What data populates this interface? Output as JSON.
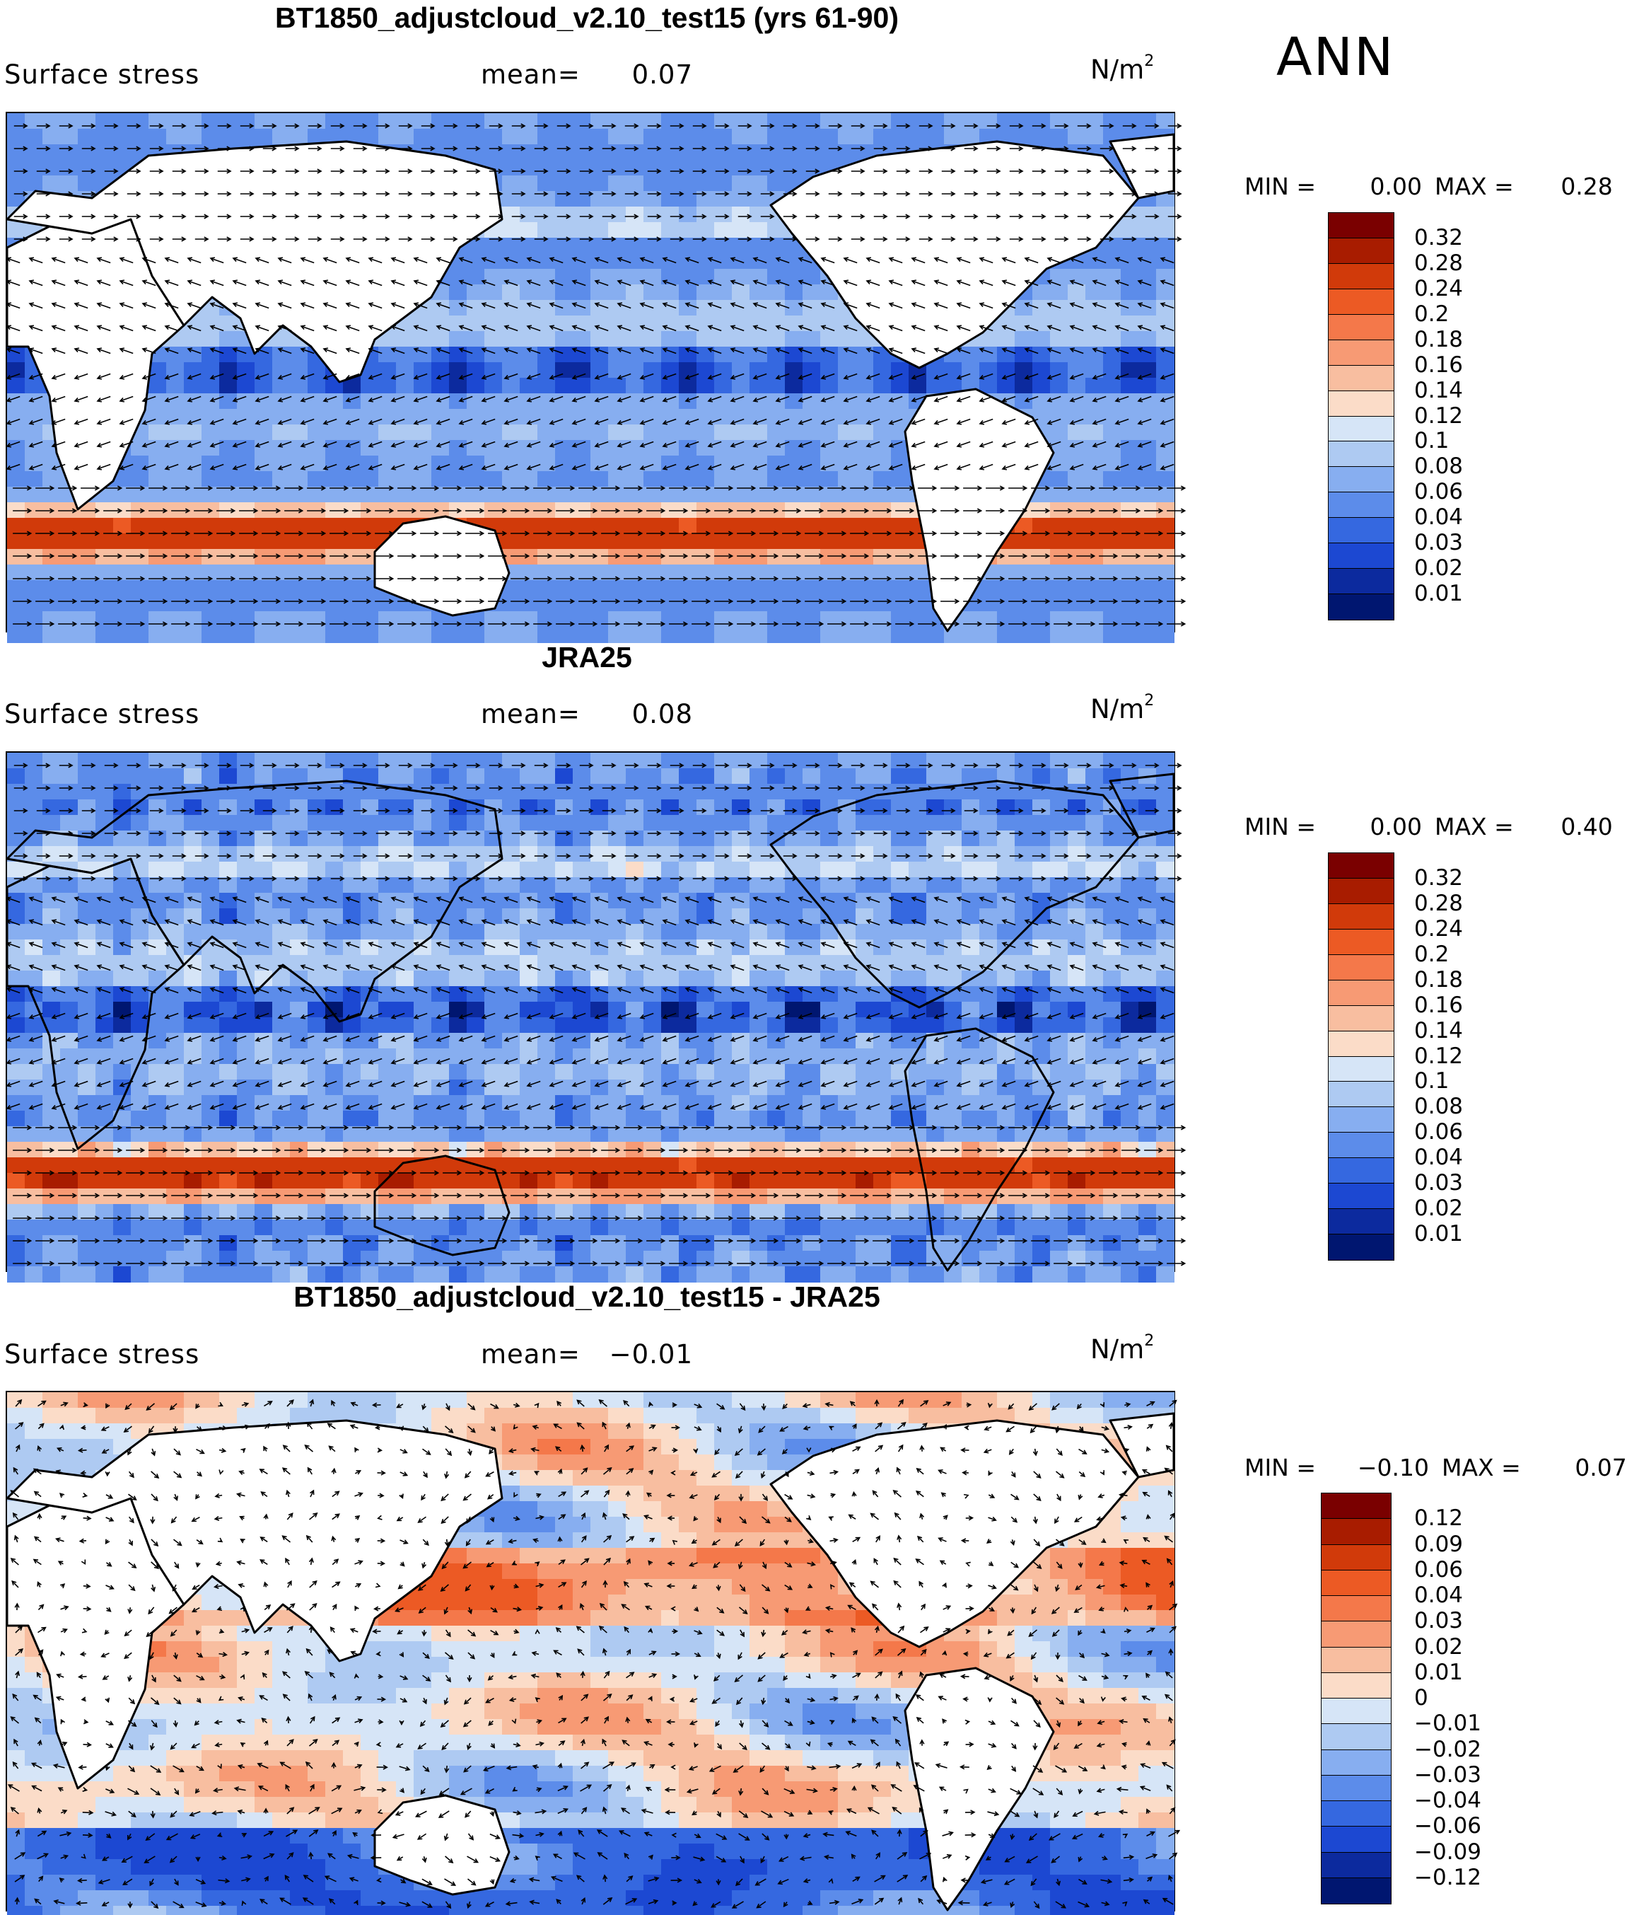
{
  "season": "ANN",
  "panels": [
    {
      "title": "BT1850_adjustcloud_v2.10_test15 (yrs 61-90)",
      "field": "Surface stress",
      "mean_label": "mean=",
      "mean_value": "0.07",
      "units": "N/m",
      "units_exp": "2",
      "min_label": "MIN =",
      "min_value": "0.00",
      "max_label": "MAX =",
      "max_value": "0.28",
      "legend_levels": [
        "0.32",
        "0.28",
        "0.24",
        "0.2",
        "0.18",
        "0.16",
        "0.14",
        "0.12",
        "0.1",
        "0.08",
        "0.06",
        "0.04",
        "0.03",
        "0.02",
        "0.01"
      ]
    },
    {
      "title": "JRA25",
      "field": "Surface stress",
      "mean_label": "mean=",
      "mean_value": "0.08",
      "units": "N/m",
      "units_exp": "2",
      "min_label": "MIN =",
      "min_value": "0.00",
      "max_label": "MAX =",
      "max_value": "0.40",
      "legend_levels": [
        "0.32",
        "0.28",
        "0.24",
        "0.2",
        "0.18",
        "0.16",
        "0.14",
        "0.12",
        "0.1",
        "0.08",
        "0.06",
        "0.04",
        "0.03",
        "0.02",
        "0.01"
      ]
    },
    {
      "title": "BT1850_adjustcloud_v2.10_test15 - JRA25",
      "field": "Surface stress",
      "mean_label": "mean=",
      "mean_value": "−0.01",
      "units": "N/m",
      "units_exp": "2",
      "min_label": "MIN =",
      "min_value": "−0.10",
      "max_label": "MAX =",
      "max_value": "0.07",
      "legend_levels": [
        "0.12",
        "0.09",
        "0.06",
        "0.04",
        "0.03",
        "0.02",
        "0.01",
        "0",
        "−0.01",
        "−0.02",
        "−0.03",
        "−0.04",
        "−0.06",
        "−0.09",
        "−0.12"
      ]
    }
  ],
  "colors": {
    "abs_scale": [
      "#7a0000",
      "#a81c00",
      "#d13a0a",
      "#ec5a24",
      "#f4784a",
      "#f79a74",
      "#f8bea0",
      "#fbdcc8",
      "#d6e5f7",
      "#aecaf2",
      "#87aef0",
      "#5c8cea",
      "#3568e0",
      "#1c48d2",
      "#0c2a9e",
      "#001670"
    ],
    "diff_scale": [
      "#7a0000",
      "#a81c00",
      "#d13a0a",
      "#ec5a24",
      "#f4784a",
      "#f79a74",
      "#f8bea0",
      "#fbdcc8",
      "#d6e5f7",
      "#aecaf2",
      "#87aef0",
      "#5c8cea",
      "#3568e0",
      "#1c48d2",
      "#0c2a9e",
      "#001670"
    ]
  }
}
